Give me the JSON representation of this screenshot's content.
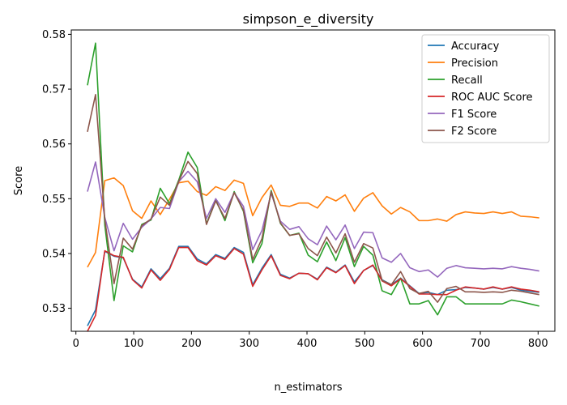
{
  "chart_data": {
    "type": "line",
    "title": "simpson_e_diversity",
    "xlabel": "n_estimators",
    "ylabel": "Score",
    "xlim": [
      -8,
      829
    ],
    "ylim": [
      0.5258,
      0.5808
    ],
    "xticks": [
      0,
      100,
      200,
      300,
      400,
      500,
      600,
      700,
      800
    ],
    "yticks": [
      0.53,
      0.54,
      0.55,
      0.56,
      0.57,
      0.58
    ],
    "xtick_labels": [
      "0",
      "100",
      "200",
      "300",
      "400",
      "500",
      "600",
      "700",
      "800"
    ],
    "ytick_labels": [
      "0.53",
      "0.54",
      "0.55",
      "0.56",
      "0.57",
      "0.58"
    ],
    "grid": false,
    "legend_position": "top-right",
    "x": [
      20,
      34,
      50,
      66,
      82,
      98,
      114,
      130,
      146,
      162,
      178,
      194,
      210,
      226,
      242,
      258,
      274,
      290,
      306,
      322,
      338,
      354,
      370,
      386,
      402,
      418,
      434,
      450,
      466,
      482,
      498,
      514,
      530,
      546,
      562,
      578,
      594,
      610,
      626,
      642,
      658,
      674,
      690,
      706,
      722,
      738,
      754,
      770,
      786,
      802
    ],
    "series": [
      {
        "name": "Accuracy",
        "color": "#1f77b4",
        "values": [
          0.5268,
          0.5297,
          0.5404,
          0.5395,
          0.5392,
          0.5353,
          0.5339,
          0.5372,
          0.5354,
          0.5373,
          0.5413,
          0.5413,
          0.539,
          0.5381,
          0.5398,
          0.5391,
          0.5411,
          0.5402,
          0.5343,
          0.5373,
          0.5398,
          0.5362,
          0.5355,
          0.5364,
          0.5363,
          0.5353,
          0.5375,
          0.5366,
          0.5379,
          0.5348,
          0.5369,
          0.5378,
          0.5352,
          0.5343,
          0.5355,
          0.5341,
          0.5327,
          0.5329,
          0.5325,
          0.5333,
          0.5334,
          0.5338,
          0.5337,
          0.5335,
          0.5338,
          0.5335,
          0.5338,
          0.5333,
          0.5331,
          0.5329
        ]
      },
      {
        "name": "Precision",
        "color": "#ff7f0e",
        "values": [
          0.5375,
          0.5402,
          0.5533,
          0.5538,
          0.5524,
          0.5478,
          0.5464,
          0.5496,
          0.5471,
          0.5499,
          0.5529,
          0.5532,
          0.5513,
          0.5506,
          0.5522,
          0.5515,
          0.5534,
          0.5528,
          0.5469,
          0.5502,
          0.5525,
          0.5488,
          0.5486,
          0.5492,
          0.5492,
          0.5483,
          0.5504,
          0.5496,
          0.5507,
          0.5477,
          0.5501,
          0.5511,
          0.5487,
          0.5472,
          0.5484,
          0.5476,
          0.546,
          0.546,
          0.5463,
          0.5459,
          0.5471,
          0.5476,
          0.5474,
          0.5473,
          0.5476,
          0.5473,
          0.5476,
          0.5468,
          0.5467,
          0.5465
        ]
      },
      {
        "name": "Recall",
        "color": "#2ca02c",
        "values": [
          0.5707,
          0.5784,
          0.5452,
          0.5314,
          0.5414,
          0.5403,
          0.5453,
          0.5461,
          0.5519,
          0.5491,
          0.5534,
          0.5585,
          0.5557,
          0.5454,
          0.5498,
          0.546,
          0.5513,
          0.5477,
          0.5383,
          0.5418,
          0.5515,
          0.5455,
          0.5433,
          0.5437,
          0.5397,
          0.5385,
          0.5421,
          0.5387,
          0.5429,
          0.5376,
          0.5413,
          0.5397,
          0.5332,
          0.5325,
          0.5355,
          0.5308,
          0.5308,
          0.5314,
          0.5288,
          0.5321,
          0.5321,
          0.5308,
          0.5308,
          0.5308,
          0.5308,
          0.5308,
          0.5315,
          0.5312,
          0.5308,
          0.5304
        ]
      },
      {
        "name": "ROC AUC Score",
        "color": "#d62728",
        "values": [
          0.5258,
          0.5287,
          0.5405,
          0.5396,
          0.5393,
          0.5352,
          0.5337,
          0.537,
          0.5351,
          0.5371,
          0.5411,
          0.5411,
          0.5387,
          0.5379,
          0.5396,
          0.5389,
          0.5409,
          0.5399,
          0.534,
          0.537,
          0.5396,
          0.536,
          0.5354,
          0.5364,
          0.5363,
          0.5352,
          0.5374,
          0.5365,
          0.5378,
          0.5345,
          0.5369,
          0.5379,
          0.535,
          0.5341,
          0.5354,
          0.534,
          0.5326,
          0.5326,
          0.5325,
          0.5325,
          0.5333,
          0.5339,
          0.5337,
          0.5335,
          0.5339,
          0.5335,
          0.5339,
          0.5335,
          0.5333,
          0.533
        ]
      },
      {
        "name": "F1 Score",
        "color": "#9467bd",
        "values": [
          0.5513,
          0.5567,
          0.5466,
          0.5405,
          0.5455,
          0.5426,
          0.5448,
          0.5463,
          0.5484,
          0.5482,
          0.5531,
          0.555,
          0.5531,
          0.5464,
          0.55,
          0.5475,
          0.5511,
          0.5486,
          0.5407,
          0.5442,
          0.551,
          0.5459,
          0.5444,
          0.5449,
          0.5427,
          0.5416,
          0.545,
          0.5425,
          0.5452,
          0.5409,
          0.5439,
          0.5438,
          0.5392,
          0.5384,
          0.54,
          0.5374,
          0.5367,
          0.537,
          0.5357,
          0.5373,
          0.5378,
          0.5374,
          0.5373,
          0.5372,
          0.5373,
          0.5372,
          0.5376,
          0.5373,
          0.5371,
          0.5368
        ]
      },
      {
        "name": "F2 Score",
        "color": "#8c564b",
        "values": [
          0.5622,
          0.569,
          0.5462,
          0.5345,
          0.5428,
          0.5408,
          0.5451,
          0.5463,
          0.5503,
          0.5488,
          0.5532,
          0.5568,
          0.5546,
          0.5453,
          0.5496,
          0.5464,
          0.5511,
          0.5479,
          0.5389,
          0.5427,
          0.5513,
          0.5456,
          0.5433,
          0.5436,
          0.5409,
          0.5396,
          0.543,
          0.5401,
          0.5436,
          0.5384,
          0.5418,
          0.541,
          0.5351,
          0.5343,
          0.5367,
          0.5336,
          0.5327,
          0.5331,
          0.5311,
          0.5336,
          0.534,
          0.533,
          0.533,
          0.5329,
          0.533,
          0.5329,
          0.5333,
          0.5331,
          0.5328,
          0.5325
        ]
      }
    ]
  }
}
